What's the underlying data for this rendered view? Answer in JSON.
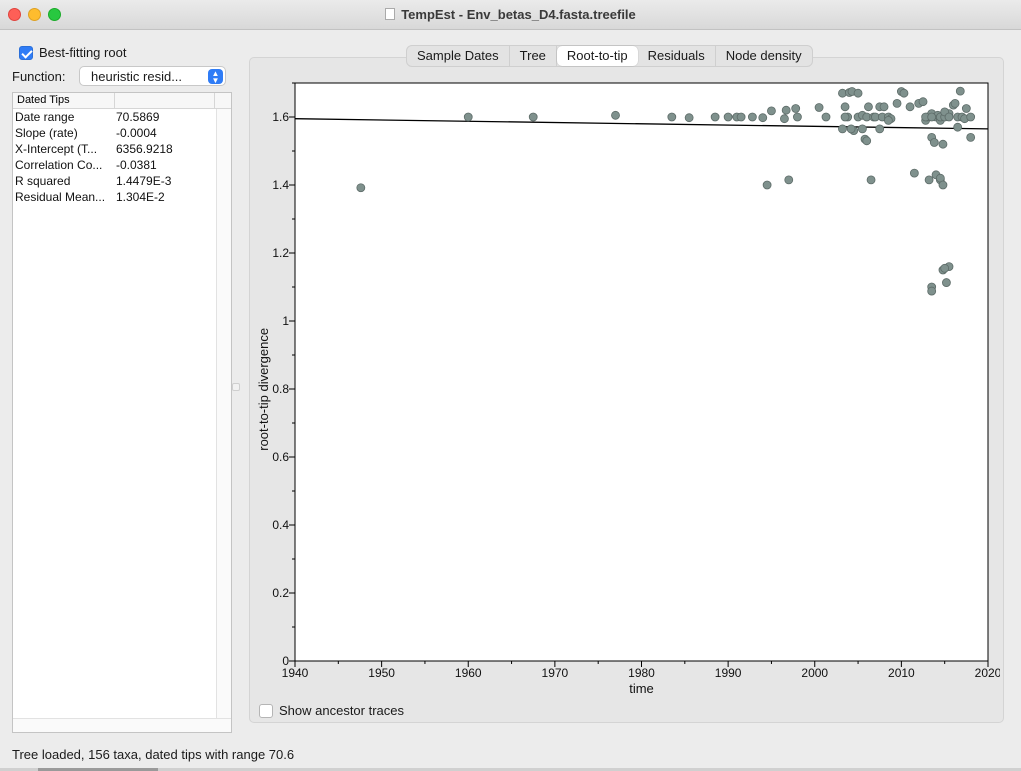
{
  "window": {
    "title": "TempEst - Env_betas_D4.fasta.treefile"
  },
  "sidebar": {
    "best_fitting_root_label": "Best-fitting root",
    "best_fitting_root_checked": true,
    "function_label": "Function:",
    "function_value": "heuristic resid...",
    "table_header": "Dated Tips",
    "rows": [
      {
        "key": "Date range",
        "value": "70.5869"
      },
      {
        "key": "Slope (rate)",
        "value": "-0.0004"
      },
      {
        "key": "X-Intercept (T...",
        "value": "6356.9218"
      },
      {
        "key": "Correlation Co...",
        "value": "-0.0381"
      },
      {
        "key": "R squared",
        "value": "1.4479E-3"
      },
      {
        "key": "Residual Mean...",
        "value": "1.304E-2"
      }
    ]
  },
  "tabs": [
    {
      "label": "Sample Dates",
      "active": false
    },
    {
      "label": "Tree",
      "active": false
    },
    {
      "label": "Root-to-tip",
      "active": true
    },
    {
      "label": "Residuals",
      "active": false
    },
    {
      "label": "Node density",
      "active": false
    }
  ],
  "plot": {
    "show_ancestor_traces_label": "Show ancestor traces",
    "show_ancestor_traces_checked": false
  },
  "status": {
    "text": "Tree loaded, 156 taxa, dated tips with range 70.6"
  },
  "colors": {
    "point_fill": "#7f918d",
    "point_stroke": "#5d6b68",
    "regression_line": "#000000",
    "accent": "#2f7cf6"
  },
  "chart_data": {
    "type": "scatter",
    "xlabel": "time",
    "ylabel": "root-to-tip divergence",
    "xlim": [
      1940,
      2020
    ],
    "ylim": [
      0,
      1.7
    ],
    "xticks": [
      "1940",
      "1950",
      "1960",
      "1970",
      "1980",
      "1990",
      "2000",
      "2010",
      "2020"
    ],
    "yticks": [
      "0",
      "0.2",
      "0.4",
      "0.6",
      "0.8",
      "1",
      "1.2",
      "1.4",
      "1.6"
    ],
    "regression": {
      "x": [
        1940,
        2020
      ],
      "y": [
        1.595,
        1.565
      ]
    },
    "points": {
      "x": [
        1947.6,
        1960,
        1967.5,
        1977,
        1983.5,
        1985.5,
        1988.5,
        1990,
        1991,
        1991.5,
        1992.8,
        1994,
        1994.5,
        1995,
        1996.5,
        1996.7,
        1997,
        1997.8,
        1998,
        2000.5,
        2001.3,
        2003.2,
        2003.5,
        2003.8,
        2003.5,
        2003.2,
        2004,
        2004.3,
        2004.5,
        2004.2,
        2005,
        2005.5,
        2005,
        2005.5,
        2005.8,
        2006,
        2006.2,
        2006,
        2006.5,
        2006.8,
        2007,
        2007.5,
        2007.8,
        2007.5,
        2008,
        2008.5,
        2008.8,
        2008.5,
        2009.5,
        2010,
        2010.3,
        2011,
        2011.5,
        2012,
        2012.5,
        2012.8,
        2013,
        2013.2,
        2013.5,
        2013.5,
        2013.8,
        2014,
        2014.2,
        2014.5,
        2014.5,
        2014.8,
        2014.5,
        2015,
        2015.5,
        2015,
        2015.5,
        2016,
        2016.2,
        2016.5,
        2016.5,
        2016.8,
        2017,
        2017.3,
        2017.5,
        2018,
        2018,
        2012.8,
        2013.5,
        2014,
        2014.5,
        2014.8,
        2013.5,
        2013.5,
        2014.8,
        2015.5,
        2015,
        2015.2
      ],
      "y": [
        1.392,
        1.6,
        1.6,
        1.605,
        1.6,
        1.598,
        1.6,
        1.6,
        1.6,
        1.6,
        1.6,
        1.598,
        1.4,
        1.618,
        1.595,
        1.62,
        1.415,
        1.625,
        1.6,
        1.628,
        1.6,
        1.67,
        1.63,
        1.6,
        1.6,
        1.565,
        1.672,
        1.675,
        1.56,
        1.565,
        1.67,
        1.565,
        1.6,
        1.605,
        1.535,
        1.53,
        1.63,
        1.6,
        1.415,
        1.6,
        1.6,
        1.63,
        1.6,
        1.565,
        1.63,
        1.6,
        1.595,
        1.59,
        1.64,
        1.675,
        1.67,
        1.63,
        1.435,
        1.64,
        1.645,
        1.59,
        1.6,
        1.415,
        1.61,
        1.54,
        1.525,
        1.6,
        1.605,
        1.59,
        1.6,
        1.52,
        1.415,
        1.6,
        1.61,
        1.615,
        1.6,
        1.635,
        1.64,
        1.6,
        1.57,
        1.676,
        1.6,
        1.595,
        1.625,
        1.6,
        1.54,
        1.6,
        1.6,
        1.43,
        1.42,
        1.4,
        1.1,
        1.088,
        1.15,
        1.16,
        1.155,
        1.113
      ]
    }
  }
}
